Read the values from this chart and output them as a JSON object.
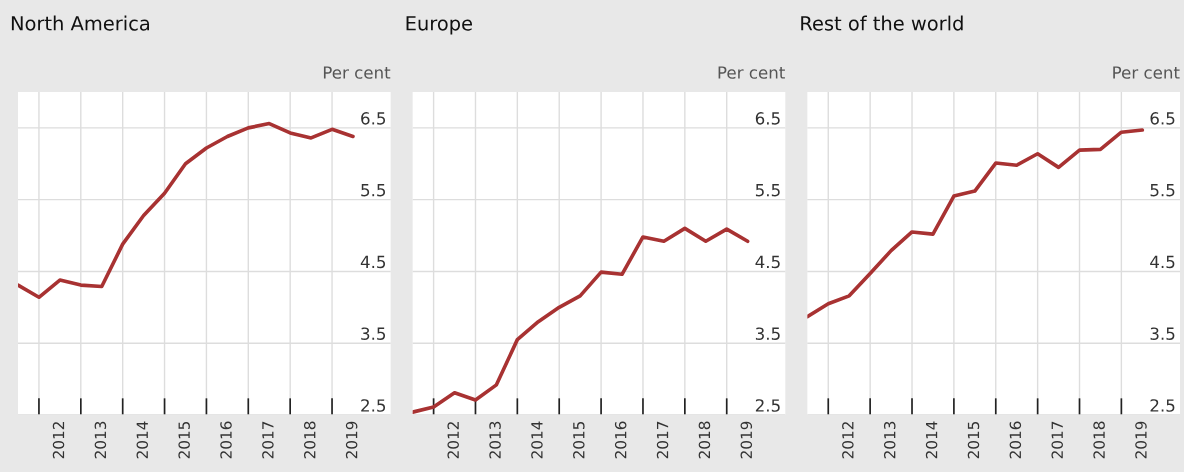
{
  "chart_data": [
    {
      "type": "line",
      "title": "North America",
      "ylabel": "Per cent",
      "x": [
        2011.5,
        2012.0,
        2012.5,
        2013.0,
        2013.5,
        2014.0,
        2014.5,
        2015.0,
        2015.5,
        2016.0,
        2016.5,
        2017.0,
        2017.5,
        2018.0,
        2018.5,
        2019.0,
        2019.5
      ],
      "series": [
        {
          "color": "#a83232",
          "values": [
            4.31,
            4.14,
            4.38,
            4.31,
            4.29,
            4.88,
            5.28,
            5.59,
            6.0,
            6.22,
            6.38,
            6.5,
            6.56,
            6.43,
            6.36,
            6.48,
            6.38
          ]
        }
      ],
      "xlim": [
        2011.5,
        2020.4
      ],
      "ylim": [
        2.5,
        7.0
      ],
      "yticks": [
        2.5,
        3.5,
        4.5,
        5.5,
        6.5
      ],
      "xticks": [
        {
          "value": 2012,
          "label": null
        },
        {
          "value": 2012.5,
          "label": "2012"
        },
        {
          "value": 2013,
          "label": null
        },
        {
          "value": 2013.5,
          "label": "2013"
        },
        {
          "value": 2014,
          "label": null
        },
        {
          "value": 2014.5,
          "label": "2014"
        },
        {
          "value": 2015,
          "label": null
        },
        {
          "value": 2015.5,
          "label": "2015"
        },
        {
          "value": 2016,
          "label": null
        },
        {
          "value": 2016.5,
          "label": "2016"
        },
        {
          "value": 2017,
          "label": null
        },
        {
          "value": 2017.5,
          "label": "2017"
        },
        {
          "value": 2018,
          "label": null
        },
        {
          "value": 2018.5,
          "label": "2018"
        },
        {
          "value": 2019,
          "label": null
        },
        {
          "value": 2019.5,
          "label": "2019"
        }
      ],
      "grid": true,
      "line_style": "solid",
      "marker": "none"
    },
    {
      "type": "line",
      "title": "Europe",
      "ylabel": "Per cent",
      "x": [
        2011.5,
        2012.0,
        2012.5,
        2013.0,
        2013.5,
        2014.0,
        2014.5,
        2015.0,
        2015.5,
        2016.0,
        2016.5,
        2017.0,
        2017.5,
        2018.0,
        2018.5,
        2019.0,
        2019.5
      ],
      "series": [
        {
          "color": "#a83232",
          "values": [
            2.54,
            2.61,
            2.81,
            2.71,
            2.92,
            3.55,
            3.8,
            4.0,
            4.16,
            4.49,
            4.46,
            4.98,
            4.92,
            5.1,
            4.92,
            5.09,
            4.92
          ]
        }
      ],
      "xlim": [
        2011.5,
        2020.4
      ],
      "ylim": [
        2.5,
        7.0
      ],
      "yticks": [
        2.5,
        3.5,
        4.5,
        5.5,
        6.5
      ],
      "xticks": [
        {
          "value": 2012,
          "label": null
        },
        {
          "value": 2012.5,
          "label": "2012"
        },
        {
          "value": 2013,
          "label": null
        },
        {
          "value": 2013.5,
          "label": "2013"
        },
        {
          "value": 2014,
          "label": null
        },
        {
          "value": 2014.5,
          "label": "2014"
        },
        {
          "value": 2015,
          "label": null
        },
        {
          "value": 2015.5,
          "label": "2015"
        },
        {
          "value": 2016,
          "label": null
        },
        {
          "value": 2016.5,
          "label": "2016"
        },
        {
          "value": 2017,
          "label": null
        },
        {
          "value": 2017.5,
          "label": "2017"
        },
        {
          "value": 2018,
          "label": null
        },
        {
          "value": 2018.5,
          "label": "2018"
        },
        {
          "value": 2019,
          "label": null
        },
        {
          "value": 2019.5,
          "label": "2019"
        }
      ],
      "grid": true,
      "line_style": "solid",
      "marker": "none"
    },
    {
      "type": "line",
      "title": "Rest of the world",
      "ylabel": "Per cent",
      "x": [
        2011.5,
        2012.0,
        2012.5,
        2013.0,
        2013.5,
        2014.0,
        2014.5,
        2015.0,
        2015.5,
        2016.0,
        2016.5,
        2017.0,
        2017.5,
        2018.0,
        2018.5,
        2019.0,
        2019.5
      ],
      "series": [
        {
          "color": "#a83232",
          "values": [
            3.87,
            4.05,
            4.16,
            4.47,
            4.79,
            5.05,
            5.02,
            5.55,
            5.62,
            6.01,
            5.98,
            6.14,
            5.95,
            6.19,
            6.2,
            6.44,
            6.47
          ]
        }
      ],
      "xlim": [
        2011.5,
        2020.4
      ],
      "ylim": [
        2.5,
        7.0
      ],
      "yticks": [
        2.5,
        3.5,
        4.5,
        5.5,
        6.5
      ],
      "xticks": [
        {
          "value": 2012,
          "label": null
        },
        {
          "value": 2012.5,
          "label": "2012"
        },
        {
          "value": 2013,
          "label": null
        },
        {
          "value": 2013.5,
          "label": "2013"
        },
        {
          "value": 2014,
          "label": null
        },
        {
          "value": 2014.5,
          "label": "2014"
        },
        {
          "value": 2015,
          "label": null
        },
        {
          "value": 2015.5,
          "label": "2015"
        },
        {
          "value": 2016,
          "label": null
        },
        {
          "value": 2016.5,
          "label": "2016"
        },
        {
          "value": 2017,
          "label": null
        },
        {
          "value": 2017.5,
          "label": "2017"
        },
        {
          "value": 2018,
          "label": null
        },
        {
          "value": 2018.5,
          "label": "2018"
        },
        {
          "value": 2019,
          "label": null
        },
        {
          "value": 2019.5,
          "label": "2019"
        }
      ],
      "grid": true,
      "line_style": "solid",
      "marker": "none"
    }
  ]
}
